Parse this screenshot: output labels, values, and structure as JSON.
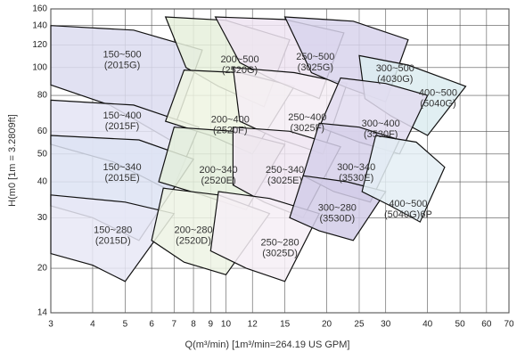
{
  "chart_data": {
    "type": "region",
    "x_label": "Q(m³/min)  [1m³/min=264.19 US GPM]",
    "y_label": "H(m0  [1m = 3.2809ft]",
    "xscale": "log",
    "yscale": "log",
    "grid": true,
    "xlim": [
      3,
      70
    ],
    "ylim": [
      14,
      160
    ],
    "xticks": [
      3,
      4,
      5,
      6,
      7,
      8,
      9,
      10,
      12,
      15,
      20,
      25,
      30,
      40,
      50,
      60,
      70
    ],
    "yticks": [
      14,
      20,
      30,
      40,
      50,
      60,
      80,
      100,
      120,
      140,
      160
    ],
    "regions": [
      {
        "label": [
          "150~500",
          "(2015G)"
        ],
        "color": "#dcdcf0",
        "x": [
          3,
          5.3,
          8.5,
          6.8,
          4.5,
          3
        ],
        "y": [
          140,
          135,
          115,
          56,
          74,
          87
        ],
        "label_x": 4.9,
        "label_y": 106
      },
      {
        "label": [
          "150~400",
          "(2015F)"
        ],
        "color": "#e4e4f4",
        "x": [
          3,
          5.3,
          8.3,
          6.9,
          4.6,
          3
        ],
        "y": [
          77,
          74,
          62,
          37,
          47,
          54
        ],
        "label_x": 4.9,
        "label_y": 65
      },
      {
        "label": [
          "150~340",
          "(2015E)"
        ],
        "color": "#dde3f3",
        "x": [
          3,
          5.5,
          8,
          5.5,
          4,
          3
        ],
        "y": [
          58,
          56,
          48,
          25,
          30,
          33
        ],
        "label_x": 4.9,
        "label_y": 43
      },
      {
        "label": [
          "150~280",
          "(2015D)"
        ],
        "color": "#e8e8f6",
        "x": [
          3,
          5,
          7,
          5,
          4,
          3
        ],
        "y": [
          36,
          34,
          31,
          18,
          20.5,
          22.5
        ],
        "label_x": 4.6,
        "label_y": 26
      },
      {
        "label": [
          "200~500",
          "(2520G)"
        ],
        "color": "#e6f0dc",
        "x": [
          6.6,
          10,
          15.5,
          13,
          9.5,
          7.6
        ],
        "y": [
          150,
          146,
          125,
          73,
          86,
          100
        ],
        "label_x": 11,
        "label_y": 102
      },
      {
        "label": [
          "200~400",
          "(2520F)"
        ],
        "color": "#eef4e2",
        "x": [
          7.5,
          11,
          16,
          12,
          9,
          6.6
        ],
        "y": [
          98,
          96,
          86,
          50,
          58,
          65
        ],
        "label_x": 10.3,
        "label_y": 63
      },
      {
        "label": [
          "200~340",
          "(2520E)"
        ],
        "color": "#e4eedc",
        "x": [
          7,
          10.5,
          15,
          11.5,
          8.5,
          6.3
        ],
        "y": [
          62,
          60,
          54,
          32,
          36,
          40
        ],
        "label_x": 9.5,
        "label_y": 42
      },
      {
        "label": [
          "200~280",
          "(2520D)"
        ],
        "color": "#edf3e4",
        "x": [
          6.5,
          9.5,
          13.5,
          10,
          7.5,
          6
        ],
        "y": [
          38,
          36,
          31,
          19,
          21,
          25
        ],
        "label_x": 8,
        "label_y": 26
      },
      {
        "label": [
          "250~500",
          "(3025G)"
        ],
        "color": "#efe4f2",
        "x": [
          9.3,
          15,
          22.5,
          19,
          14,
          11
        ],
        "y": [
          150,
          147,
          132,
          78,
          90,
          104
        ],
        "label_x": 18.5,
        "label_y": 104
      },
      {
        "label": [
          "250~400",
          "(3025F)"
        ],
        "color": "#f5edf5",
        "x": [
          10.5,
          16,
          23,
          19.5,
          14,
          11
        ],
        "y": [
          100,
          96,
          88,
          50,
          57,
          65
        ],
        "label_x": 17.5,
        "label_y": 64
      },
      {
        "label": [
          "250~340",
          "(3025E)"
        ],
        "color": "#f0e6f2",
        "x": [
          10.5,
          15.5,
          22,
          17,
          13,
          10.5
        ],
        "y": [
          62,
          60,
          53,
          30,
          34,
          39
        ],
        "label_x": 15,
        "label_y": 42
      },
      {
        "label": [
          "250~280",
          "(3025D)"
        ],
        "color": "#f6eff6",
        "x": [
          9.5,
          13.5,
          19,
          15,
          11.5,
          9
        ],
        "y": [
          37,
          35,
          31,
          18,
          20,
          23
        ],
        "label_x": 14.5,
        "label_y": 23.5
      },
      {
        "label": [
          "300~500",
          "(4030G)"
        ],
        "color": "#d8d4ec",
        "x": [
          15,
          24,
          35,
          30,
          23,
          18
        ],
        "y": [
          150,
          145,
          125,
          76,
          85,
          96
        ],
        "label_x": 32,
        "label_y": 95
      },
      {
        "label": [
          "400~500",
          "(5040G)"
        ],
        "color": "#dcecf0",
        "x": [
          25,
          35,
          52,
          40,
          31,
          26
        ],
        "y": [
          110,
          102,
          86,
          58,
          68,
          78
        ],
        "label_x": 43,
        "label_y": 78
      },
      {
        "label": [
          "300~400",
          "(3530F)"
        ],
        "color": "#e2dcf0",
        "x": [
          22,
          30,
          40,
          33,
          25,
          19
        ],
        "y": [
          92,
          88,
          80,
          50,
          55,
          62
        ],
        "label_x": 29,
        "label_y": 61
      },
      {
        "label": [
          "300~340",
          "(3530E)"
        ],
        "color": "#d6d0ea",
        "x": [
          19,
          25,
          33,
          27,
          21,
          17
        ],
        "y": [
          64,
          62,
          56,
          34,
          37,
          42
        ],
        "label_x": 24.5,
        "label_y": 43
      },
      {
        "label": [
          "300~280",
          "(3530D)"
        ],
        "color": "#d2cce8",
        "x": [
          17,
          23,
          30,
          24,
          19,
          15.5
        ],
        "y": [
          42,
          40,
          37,
          25,
          27,
          30
        ],
        "label_x": 21.5,
        "label_y": 31
      },
      {
        "label": [
          "400~500",
          "(5040G)6P"
        ],
        "color": "#e4eef4",
        "x": [
          28,
          37,
          45,
          38,
          31,
          25.5
        ],
        "y": [
          58,
          55,
          45,
          29,
          33,
          37
        ],
        "label_x": 35,
        "label_y": 32
      }
    ]
  }
}
